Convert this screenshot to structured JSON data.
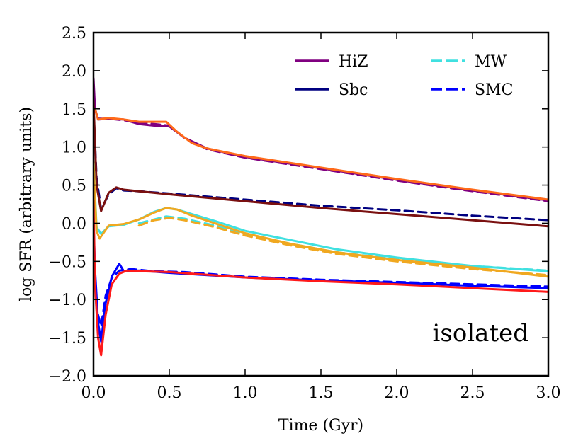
{
  "chart_data": {
    "type": "line",
    "title": "",
    "xlabel": "Time (Gyr)",
    "ylabel": "log SFR (arbitrary units)",
    "xlim": [
      0.0,
      3.0
    ],
    "ylim": [
      -2.0,
      2.5
    ],
    "xticks": [
      0.0,
      0.5,
      1.0,
      1.5,
      2.0,
      2.5,
      3.0
    ],
    "xtick_labels": [
      "0.0",
      "0.5",
      "1.0",
      "1.5",
      "2.0",
      "2.5",
      "3.0"
    ],
    "yticks": [
      -2.0,
      -1.5,
      -1.0,
      -0.5,
      0.0,
      0.5,
      1.0,
      1.5,
      2.0,
      2.5
    ],
    "ytick_labels": [
      "−2.0",
      "−1.5",
      "−1.0",
      "−0.5",
      "0.0",
      "0.5",
      "1.0",
      "1.5",
      "2.0",
      "2.5"
    ],
    "grid": false,
    "legend_position": "top-right",
    "legend": [
      {
        "label": "HiZ",
        "color": "#800080",
        "dash": "solid"
      },
      {
        "label": "MW",
        "color": "#40e0e0",
        "dash": "dashed"
      },
      {
        "label": "Sbc",
        "color": "#000080",
        "dash": "solid"
      },
      {
        "label": "SMC",
        "color": "#0000ff",
        "dash": "dashed"
      }
    ],
    "annotation": "isolated",
    "series": [
      {
        "name": "HiZ",
        "color": "#800080",
        "dash": "solid",
        "x": [
          0.0,
          0.01,
          0.03,
          0.1,
          0.2,
          0.3,
          0.4,
          0.5,
          0.6,
          0.75,
          1.0,
          1.5,
          2.0,
          2.5,
          3.0
        ],
        "y": [
          1.9,
          1.5,
          1.37,
          1.37,
          1.36,
          1.3,
          1.28,
          1.27,
          1.12,
          0.98,
          0.87,
          0.72,
          0.57,
          0.43,
          0.3
        ]
      },
      {
        "name": "HiZ",
        "color": "#800080",
        "dash": "dashed",
        "x": [
          0.03,
          0.1,
          0.2,
          0.3,
          0.4,
          0.5,
          0.6,
          0.75,
          1.0,
          1.5,
          2.0,
          2.5,
          3.0
        ],
        "y": [
          1.36,
          1.37,
          1.35,
          1.32,
          1.3,
          1.28,
          1.12,
          0.97,
          0.86,
          0.71,
          0.56,
          0.42,
          0.29
        ]
      },
      {
        "name": "HiZ",
        "color": "#ff6a1a",
        "dash": "solid",
        "x": [
          0.01,
          0.03,
          0.1,
          0.2,
          0.3,
          0.4,
          0.48,
          0.55,
          0.65,
          0.75,
          1.0,
          1.5,
          2.0,
          2.5,
          3.0
        ],
        "y": [
          1.5,
          1.36,
          1.38,
          1.36,
          1.33,
          1.33,
          1.33,
          1.2,
          1.05,
          0.98,
          0.88,
          0.73,
          0.58,
          0.44,
          0.31
        ]
      },
      {
        "name": "Sbc",
        "color": "#000080",
        "dash": "dashed",
        "x": [
          0.0,
          0.02,
          0.05,
          0.1,
          0.15,
          0.2,
          0.3,
          0.5,
          1.0,
          1.5,
          2.0,
          2.5,
          3.0
        ],
        "y": [
          1.5,
          0.6,
          0.18,
          0.38,
          0.46,
          0.43,
          0.42,
          0.39,
          0.31,
          0.23,
          0.17,
          0.1,
          0.04
        ]
      },
      {
        "name": "Sbc",
        "color": "#7a1010",
        "dash": "solid",
        "x": [
          0.0,
          0.02,
          0.05,
          0.1,
          0.15,
          0.2,
          0.3,
          0.5,
          1.0,
          1.5,
          2.0,
          2.5,
          3.0
        ],
        "y": [
          1.6,
          0.5,
          0.16,
          0.4,
          0.47,
          0.44,
          0.42,
          0.38,
          0.29,
          0.2,
          0.12,
          0.04,
          -0.04
        ]
      },
      {
        "name": "MW",
        "color": "#40e0e0",
        "dash": "solid",
        "x": [
          0.0,
          0.02,
          0.05,
          0.1,
          0.2,
          0.3,
          0.4,
          0.48,
          0.55,
          0.65,
          0.8,
          1.0,
          1.3,
          1.6,
          2.0,
          2.5,
          3.0
        ],
        "y": [
          0.8,
          -0.05,
          -0.14,
          -0.04,
          -0.02,
          0.05,
          0.15,
          0.2,
          0.18,
          0.12,
          0.03,
          -0.1,
          -0.22,
          -0.34,
          -0.45,
          -0.56,
          -0.63
        ]
      },
      {
        "name": "MW",
        "color": "#40e0e0",
        "dash": "dashed",
        "x": [
          0.3,
          0.4,
          0.48,
          0.6,
          0.8,
          1.0,
          1.3,
          1.6,
          2.0,
          2.5,
          3.0
        ],
        "y": [
          0.0,
          0.05,
          0.09,
          0.06,
          -0.03,
          -0.14,
          -0.27,
          -0.38,
          -0.47,
          -0.56,
          -0.62
        ]
      },
      {
        "name": "MW",
        "color": "#f0a820",
        "dash": "solid",
        "x": [
          0.0,
          0.02,
          0.04,
          0.1,
          0.2,
          0.3,
          0.4,
          0.48,
          0.55,
          0.65,
          0.8,
          1.0,
          1.3,
          1.6,
          2.0,
          2.5,
          3.0
        ],
        "y": [
          0.8,
          -0.1,
          -0.2,
          -0.03,
          -0.01,
          0.05,
          0.14,
          0.2,
          0.18,
          0.1,
          0.0,
          -0.13,
          -0.27,
          -0.38,
          -0.48,
          -0.58,
          -0.7
        ]
      },
      {
        "name": "MW",
        "color": "#f0a820",
        "dash": "dashed",
        "x": [
          0.3,
          0.4,
          0.5,
          0.6,
          0.8,
          1.0,
          1.3,
          1.6,
          2.0,
          2.5,
          3.0
        ],
        "y": [
          -0.03,
          0.04,
          0.07,
          0.04,
          -0.05,
          -0.16,
          -0.29,
          -0.4,
          -0.5,
          -0.6,
          -0.68
        ]
      },
      {
        "name": "SMC",
        "color": "#0000ff",
        "dash": "solid",
        "x": [
          0.0,
          0.01,
          0.03,
          0.05,
          0.08,
          0.12,
          0.17,
          0.2,
          0.3,
          0.5,
          1.0,
          1.5,
          2.0,
          2.5,
          3.0
        ],
        "y": [
          0.0,
          -0.6,
          -1.3,
          -1.55,
          -1.05,
          -0.7,
          -0.53,
          -0.63,
          -0.62,
          -0.65,
          -0.71,
          -0.75,
          -0.78,
          -0.82,
          -0.85
        ]
      },
      {
        "name": "SMC",
        "color": "#0000ff",
        "dash": "dashed",
        "x": [
          0.03,
          0.05,
          0.08,
          0.12,
          0.17,
          0.25,
          0.4,
          0.6,
          1.0,
          1.5,
          2.0,
          2.5,
          3.0
        ],
        "y": [
          -1.2,
          -1.35,
          -0.95,
          -0.72,
          -0.62,
          -0.6,
          -0.63,
          -0.64,
          -0.7,
          -0.74,
          -0.77,
          -0.8,
          -0.83
        ]
      },
      {
        "name": "SMC",
        "color": "#ff1a1a",
        "dash": "solid",
        "x": [
          0.0,
          0.01,
          0.03,
          0.05,
          0.08,
          0.12,
          0.17,
          0.22,
          0.3,
          0.5,
          1.0,
          1.5,
          2.0,
          2.5,
          3.0
        ],
        "y": [
          0.3,
          -0.8,
          -1.5,
          -1.73,
          -1.2,
          -0.8,
          -0.66,
          -0.62,
          -0.63,
          -0.64,
          -0.71,
          -0.76,
          -0.8,
          -0.85,
          -0.9
        ]
      }
    ]
  }
}
